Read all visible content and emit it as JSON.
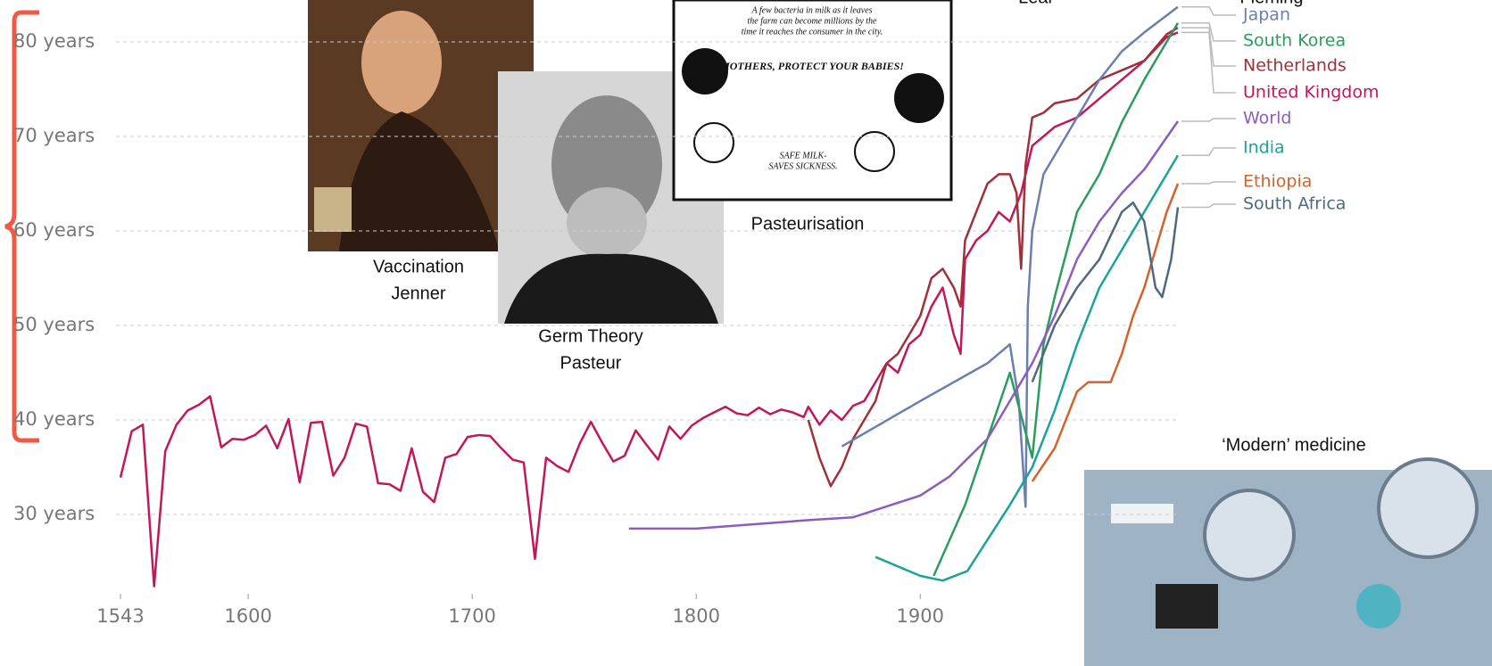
{
  "chart_data": {
    "type": "line",
    "xlim": [
      1543,
      2015
    ],
    "xticks": [
      1543,
      1600,
      1700,
      1800,
      1900
    ],
    "ylim": [
      22,
      84
    ],
    "yticks": [
      {
        "value": 30,
        "label": "30 years"
      },
      {
        "value": 40,
        "label": "40 years"
      },
      {
        "value": 50,
        "label": "50 years"
      },
      {
        "value": 60,
        "label": "60 years"
      },
      {
        "value": 70,
        "label": "70 years"
      },
      {
        "value": 80,
        "label": "80 years"
      }
    ],
    "grid": true,
    "series": [
      {
        "name": "United Kingdom",
        "color": "#c2185b",
        "x": [
          1543,
          1548,
          1553,
          1558,
          1563,
          1568,
          1573,
          1578,
          1583,
          1588,
          1593,
          1598,
          1603,
          1608,
          1613,
          1618,
          1623,
          1628,
          1633,
          1638,
          1643,
          1648,
          1653,
          1658,
          1663,
          1668,
          1673,
          1678,
          1683,
          1688,
          1693,
          1698,
          1703,
          1708,
          1713,
          1718,
          1723,
          1728,
          1733,
          1738,
          1743,
          1748,
          1753,
          1758,
          1763,
          1768,
          1773,
          1778,
          1783,
          1788,
          1793,
          1798,
          1803,
          1808,
          1813,
          1818,
          1823,
          1828,
          1833,
          1838,
          1843,
          1848,
          1850,
          1855,
          1860,
          1865,
          1870,
          1875,
          1880,
          1885,
          1890,
          1895,
          1900,
          1905,
          1910,
          1915,
          1918,
          1920,
          1925,
          1930,
          1935,
          1940,
          1945,
          1948,
          1950,
          1955,
          1960,
          1970,
          1980,
          1990,
          2000,
          2010,
          2015
        ],
        "values": [
          33.9,
          38.8,
          39.5,
          22.4,
          36.7,
          39.5,
          41,
          41.6,
          42.5,
          37.1,
          38,
          37.9,
          38.4,
          39.4,
          37,
          40.1,
          33.4,
          39.7,
          39.8,
          34.1,
          36,
          39.6,
          39.3,
          33.3,
          33.2,
          32.5,
          37,
          32.4,
          31.3,
          36,
          36.4,
          38.2,
          38.4,
          38.3,
          37,
          35.8,
          35.5,
          25.3,
          36,
          35.1,
          34.5,
          37.5,
          39.8,
          37.6,
          35.6,
          36.2,
          38.9,
          37.3,
          35.8,
          39.3,
          38,
          39.4,
          40.2,
          40.8,
          41.4,
          40.7,
          40.5,
          41.3,
          40.6,
          41.1,
          40.8,
          40.3,
          41.4,
          39.5,
          41,
          40,
          41.5,
          42,
          44,
          46,
          45,
          48,
          49,
          52,
          54,
          49,
          47,
          57,
          59,
          60,
          62,
          61,
          64,
          67,
          69,
          70,
          71,
          72,
          74,
          76,
          78,
          80.5,
          81
        ]
      },
      {
        "name": "Netherlands",
        "color": "#a0303a",
        "x": [
          1850,
          1855,
          1860,
          1865,
          1870,
          1875,
          1880,
          1885,
          1890,
          1895,
          1900,
          1905,
          1910,
          1915,
          1918,
          1920,
          1925,
          1930,
          1935,
          1940,
          1943,
          1945,
          1947,
          1950,
          1955,
          1960,
          1970,
          1980,
          1990,
          2000,
          2010,
          2015
        ],
        "values": [
          40,
          36,
          33,
          35,
          38,
          40,
          42,
          46,
          47,
          49,
          51,
          55,
          56,
          54,
          52,
          59,
          62,
          65,
          66,
          66,
          64,
          56,
          67,
          72,
          72.5,
          73.5,
          74,
          76,
          77,
          78,
          80.8,
          81.5
        ]
      },
      {
        "name": "Japan",
        "color": "#6a7fb0",
        "x": [
          1865,
          1900,
          1930,
          1940,
          1944,
          1947,
          1948,
          1950,
          1955,
          1960,
          1970,
          1980,
          1990,
          2000,
          2015
        ],
        "values": [
          37.2,
          42,
          46,
          48,
          42,
          30.8,
          52,
          60,
          66,
          68,
          72,
          76,
          79,
          81,
          83.7
        ]
      },
      {
        "name": "South Korea",
        "color": "#2a9d5c",
        "x": [
          1906,
          1920,
          1940,
          1950,
          1955,
          1960,
          1970,
          1980,
          1990,
          2000,
          2015
        ],
        "values": [
          23.5,
          31,
          45,
          36,
          48,
          53,
          62,
          66,
          71.5,
          76,
          82
        ]
      },
      {
        "name": "World",
        "color": "#8e5bbf",
        "x": [
          1770,
          1800,
          1850,
          1870,
          1900,
          1913,
          1930,
          1940,
          1950,
          1960,
          1970,
          1980,
          1990,
          2000,
          2015
        ],
        "values": [
          28.5,
          28.5,
          29.4,
          29.7,
          32,
          34,
          38,
          42,
          46,
          51,
          57,
          61,
          64,
          66.5,
          71.6
        ]
      },
      {
        "name": "India",
        "color": "#1aa39a",
        "x": [
          1880,
          1900,
          1910,
          1921,
          1940,
          1950,
          1960,
          1970,
          1980,
          1990,
          2000,
          2015
        ],
        "values": [
          25.5,
          23.5,
          23,
          24,
          31,
          35,
          41,
          48,
          54,
          58,
          62,
          68
        ]
      },
      {
        "name": "Ethiopia",
        "color": "#d4622a",
        "x": [
          1950,
          1960,
          1970,
          1975,
          1980,
          1985,
          1990,
          1995,
          2000,
          2005,
          2010,
          2015
        ],
        "values": [
          33.5,
          37,
          43,
          44,
          44,
          44,
          47,
          51,
          54,
          58,
          62,
          65
        ]
      },
      {
        "name": "South Africa",
        "color": "#4f6a80",
        "x": [
          1950,
          1960,
          1970,
          1980,
          1990,
          1995,
          2000,
          2005,
          2008,
          2012,
          2015
        ],
        "values": [
          44,
          50,
          54,
          57,
          62,
          63,
          61,
          54,
          53,
          57,
          62.5
        ]
      }
    ],
    "annotations": [
      "Vaccination",
      "Jenner",
      "Germ Theory",
      "Pasteur",
      "Pasteurisation",
      "‘Modern’ medicine",
      "Leal",
      "Fleming"
    ],
    "poster_text": [
      "A few bacteria in milk as it leaves",
      "the farm can become millions by the",
      "time it reaches the consumer in the city.",
      "MOTHERS, PROTECT YOUR BABIES!",
      "SAFE MILK-",
      "SAVES SICKNESS."
    ]
  }
}
